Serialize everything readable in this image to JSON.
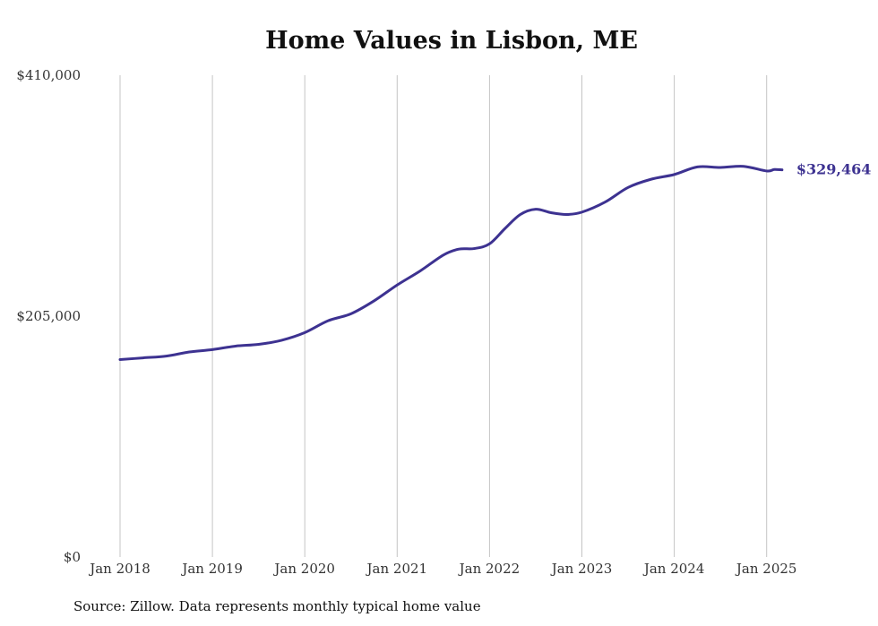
{
  "chart_data": {
    "type": "line",
    "title": "Home Values in Lisbon, ME",
    "xlabel": "",
    "ylabel": "",
    "ylim": [
      0,
      410000
    ],
    "yticks": [
      0,
      205000,
      410000
    ],
    "ytick_labels": [
      "$0",
      "$205,000",
      "$410,000"
    ],
    "xticks": [
      "2018-01",
      "2019-01",
      "2020-01",
      "2021-01",
      "2022-01",
      "2023-01",
      "2024-01",
      "2025-01"
    ],
    "xtick_labels": [
      "Jan 2018",
      "Jan 2019",
      "Jan 2020",
      "Jan 2021",
      "Jan 2022",
      "Jan 2023",
      "Jan 2024",
      "Jan 2025"
    ],
    "grid": "vertical",
    "line_color": "#3d3291",
    "end_label": "$329,464",
    "series": [
      {
        "x": [
          "2018-01",
          "2018-04",
          "2018-07",
          "2018-10",
          "2019-01",
          "2019-04",
          "2019-07",
          "2019-10",
          "2020-01",
          "2020-04",
          "2020-07",
          "2020-10",
          "2021-01",
          "2021-04",
          "2021-07",
          "2021-09",
          "2021-11",
          "2022-01",
          "2022-03",
          "2022-05",
          "2022-07",
          "2022-09",
          "2022-11",
          "2023-01",
          "2023-04",
          "2023-07",
          "2023-10",
          "2024-01",
          "2024-04",
          "2024-07",
          "2024-10",
          "2025-01",
          "2025-02",
          "2025-03"
        ],
        "values": [
          168000,
          169500,
          171000,
          174500,
          176500,
          179500,
          181000,
          184500,
          191000,
          201000,
          207000,
          218000,
          231500,
          243500,
          257000,
          262000,
          262500,
          266500,
          279500,
          291500,
          296000,
          293000,
          291500,
          293500,
          302000,
          314500,
          321500,
          325500,
          332000,
          331500,
          332500,
          328500,
          329800,
          329464
        ]
      }
    ]
  },
  "source": "Source: Zillow. Data represents monthly typical home value"
}
